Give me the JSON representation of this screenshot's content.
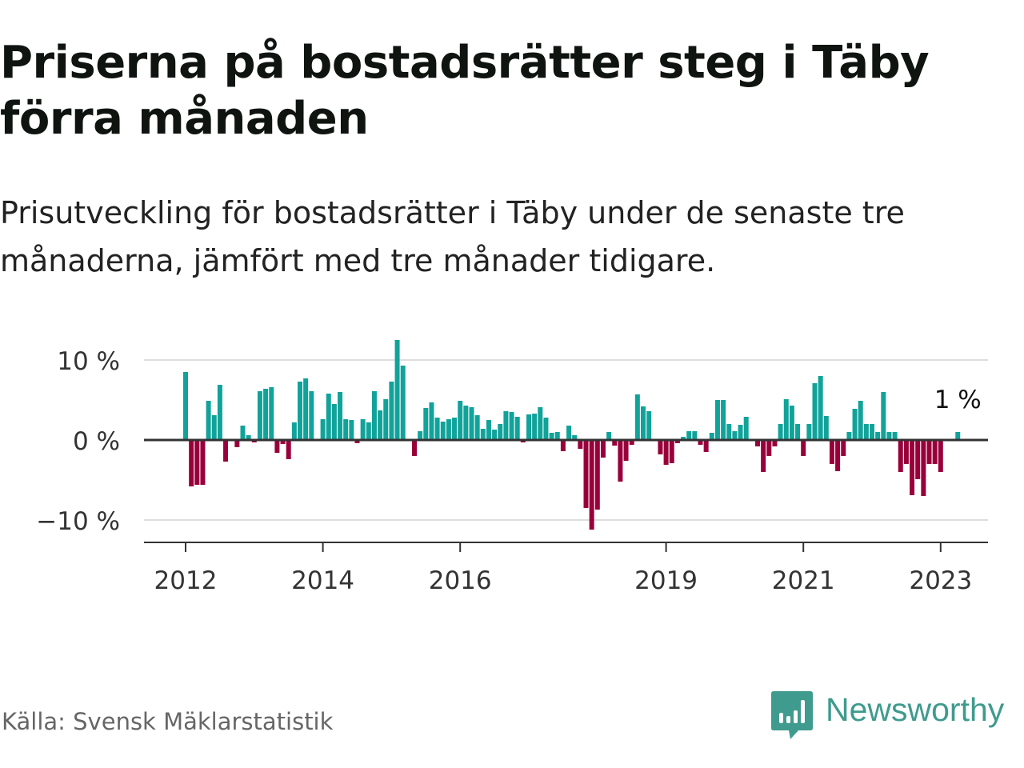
{
  "title": "Priserna på bostadsrätter steg i Täby förra månaden",
  "subtitle": "Prisutveckling för bostadsrätter i Täby under de senaste tre månaderna, jämfört med tre månader tidigare.",
  "source": "Källa: Svensk Mäklarstatistik",
  "brand": {
    "name": "Newsworthy",
    "icon": "newsworthy-logo-icon"
  },
  "colors": {
    "positive": "#11a39a",
    "negative": "#99003b",
    "grid": "#dddddd",
    "zero": "#333333",
    "brand": "#3f9b8e"
  },
  "chart_data": {
    "type": "bar",
    "xlabel": "",
    "ylabel": "",
    "ylim": [
      -13,
      13
    ],
    "yticks": [
      {
        "value": 10,
        "label": "10 %"
      },
      {
        "value": 0,
        "label": "0 %"
      },
      {
        "value": -10,
        "label": "−10 %"
      }
    ],
    "xticks": [
      {
        "date": "2012-01",
        "label": "2012"
      },
      {
        "date": "2014-01",
        "label": "2014"
      },
      {
        "date": "2016-01",
        "label": "2016"
      },
      {
        "date": "2019-01",
        "label": "2019"
      },
      {
        "date": "2021-01",
        "label": "2021"
      },
      {
        "date": "2023-01",
        "label": "2023"
      }
    ],
    "x_start": "2012-01",
    "last_label": "1 %",
    "grid": true,
    "values": [
      8.5,
      -5.8,
      -5.6,
      -5.6,
      4.9,
      3.1,
      6.9,
      -2.7,
      0,
      -0.9,
      1.8,
      0.6,
      -0.3,
      6.1,
      6.4,
      6.6,
      -1.6,
      -0.5,
      -2.4,
      2.2,
      7.3,
      7.7,
      6.1,
      0,
      2.6,
      5.8,
      4.5,
      6.0,
      2.6,
      2.5,
      -0.4,
      2.6,
      2.2,
      6.1,
      3.7,
      5.1,
      7.3,
      12.5,
      9.3,
      0,
      -2.0,
      1.1,
      4.0,
      4.7,
      2.8,
      2.3,
      2.6,
      2.8,
      4.9,
      4.3,
      4.1,
      3.1,
      1.4,
      2.5,
      1.3,
      2.0,
      3.6,
      3.5,
      2.9,
      -0.3,
      3.2,
      3.3,
      4.1,
      2.8,
      0.9,
      1.0,
      -1.4,
      1.8,
      0.6,
      -1.1,
      -8.5,
      -11.2,
      -8.7,
      -2.2,
      1.0,
      -0.7,
      -5.2,
      -2.6,
      -0.6,
      5.7,
      4.2,
      3.6,
      0,
      -1.8,
      -3.1,
      -2.9,
      -0.4,
      0.4,
      1.1,
      1.1,
      -0.6,
      -1.5,
      0.9,
      5.0,
      5.0,
      2.0,
      1.1,
      1.9,
      2.9,
      0,
      -0.8,
      -4.0,
      -2.0,
      -0.8,
      2.0,
      5.1,
      4.3,
      2.0,
      -2.0,
      2.0,
      7.1,
      8.0,
      3.0,
      -3.0,
      -3.9,
      -2.0,
      1.0,
      3.9,
      4.9,
      2.0,
      2.0,
      1.0,
      6.0,
      1.0,
      1.0,
      -4.0,
      -3.0,
      -6.9,
      -4.9,
      -7.0,
      -3.0,
      -3.0,
      -4.0,
      0,
      0,
      1.0
    ]
  }
}
